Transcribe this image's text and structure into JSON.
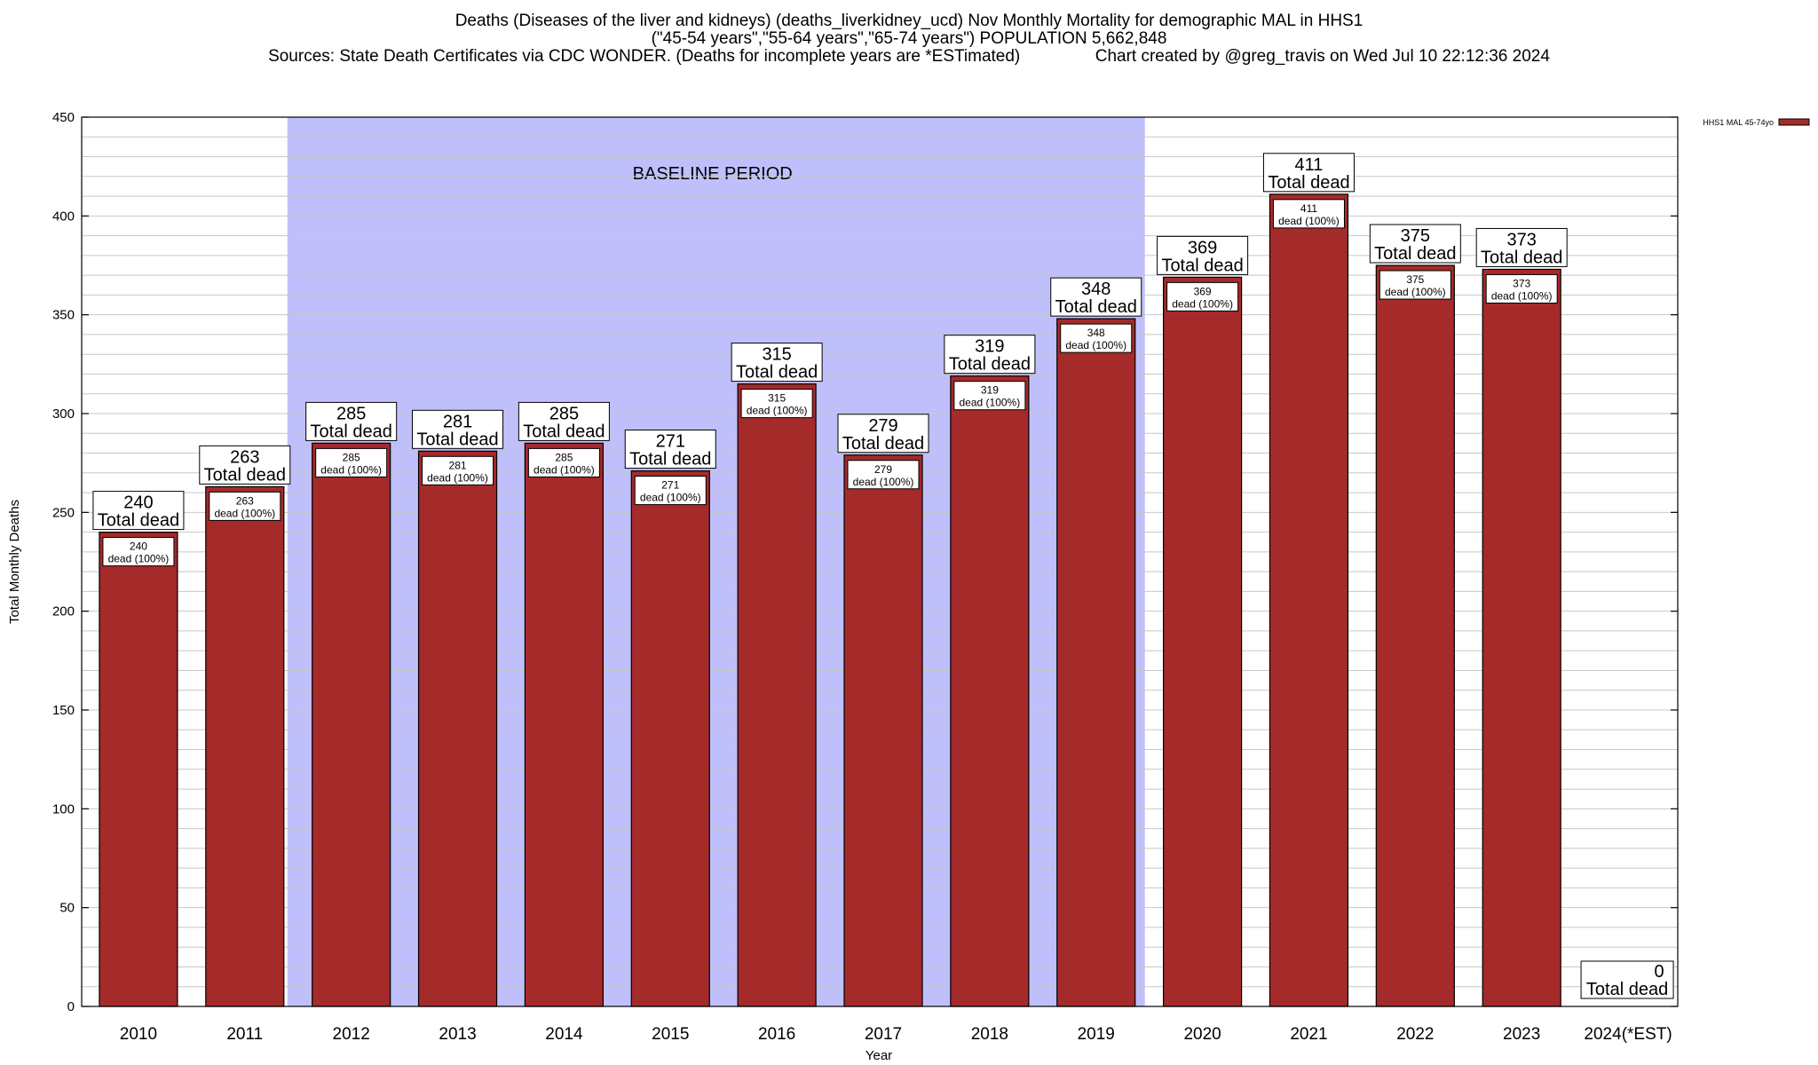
{
  "title": {
    "line1": "Deaths (Diseases of the liver and kidneys) (deaths_liverkidney_ucd) Nov Monthly Mortality for demographic MAL in HHS1",
    "line2": "(\"45-54 years\",\"55-64 years\",\"65-74 years\") POPULATION 5,662,848",
    "line3": "Sources: State Death Certificates via CDC WONDER. (Deaths for incomplete years are *ESTimated)                Chart created by @greg_travis on Wed Jul 10 22:12:36 2024"
  },
  "chart_data": {
    "type": "bar",
    "categories": [
      "2010",
      "2011",
      "2012",
      "2013",
      "2014",
      "2015",
      "2016",
      "2017",
      "2018",
      "2019",
      "2020",
      "2021",
      "2022",
      "2023",
      "2024(*EST)"
    ],
    "series": [
      {
        "name": "HHS1 MAL 45-74yo",
        "values": [
          240,
          263,
          285,
          281,
          285,
          271,
          315,
          279,
          319,
          348,
          369,
          411,
          375,
          373,
          0
        ]
      }
    ],
    "total_label": "Total dead",
    "inner_label": "dead (100%)",
    "xlabel": "Year",
    "ylabel": "Total Monthly Deaths",
    "ylim": [
      0,
      450
    ],
    "yticks": [
      0,
      50,
      100,
      150,
      200,
      250,
      300,
      350,
      400,
      450
    ],
    "minor_step": 10,
    "grid": true,
    "legend_position": "top-right",
    "baseline_label": "BASELINE PERIOD",
    "baseline_range": [
      "2012",
      "2019"
    ],
    "colors": {
      "bar": "#a52a2a",
      "baseline": "#bfbffc",
      "grid": "#c8c8c8"
    }
  }
}
